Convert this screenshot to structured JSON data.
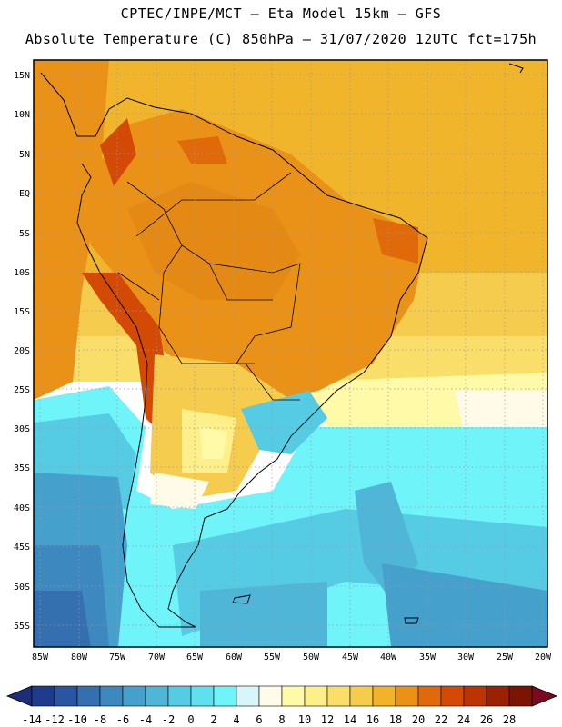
{
  "header": {
    "line1": "CPTEC/INPE/MCT –  Eta Model 15km – GFS",
    "line2": "Absolute Temperature (C) 850hPa – 31/07/2020 12UTC fct=175h"
  },
  "map": {
    "lat_labels": [
      "15N",
      "10N",
      "5N",
      "EQ",
      "5S",
      "10S",
      "15S",
      "20S",
      "25S",
      "30S",
      "35S",
      "40S",
      "45S",
      "50S",
      "55S"
    ],
    "lon_labels": [
      "85W",
      "80W",
      "75W",
      "70W",
      "65W",
      "60W",
      "55W",
      "50W",
      "45W",
      "40W",
      "35W",
      "30W",
      "25W",
      "20W"
    ]
  },
  "colorbar": {
    "labels": [
      "-14",
      "-12",
      "-10",
      "-8",
      "-6",
      "-4",
      "-2",
      "0",
      "2",
      "4",
      "6",
      "8",
      "10",
      "12",
      "14",
      "16",
      "18",
      "20",
      "22",
      "24",
      "26",
      "28"
    ],
    "colors": [
      "#1f3c8c",
      "#2a55a0",
      "#3470b0",
      "#3d88bf",
      "#46a0cc",
      "#50b6d8",
      "#55cce4",
      "#5fe0ee",
      "#6ff4fa",
      "#d6f6fa",
      "#fffbe8",
      "#fffaa8",
      "#fdef8a",
      "#f9df6a",
      "#f5cc4e",
      "#f2b22a",
      "#ea9218",
      "#e06a0a",
      "#d24a06",
      "#ba3404",
      "#9a2204",
      "#7a1502"
    ],
    "under_color": "#1c2e78",
    "over_color": "#7a0a22"
  }
}
